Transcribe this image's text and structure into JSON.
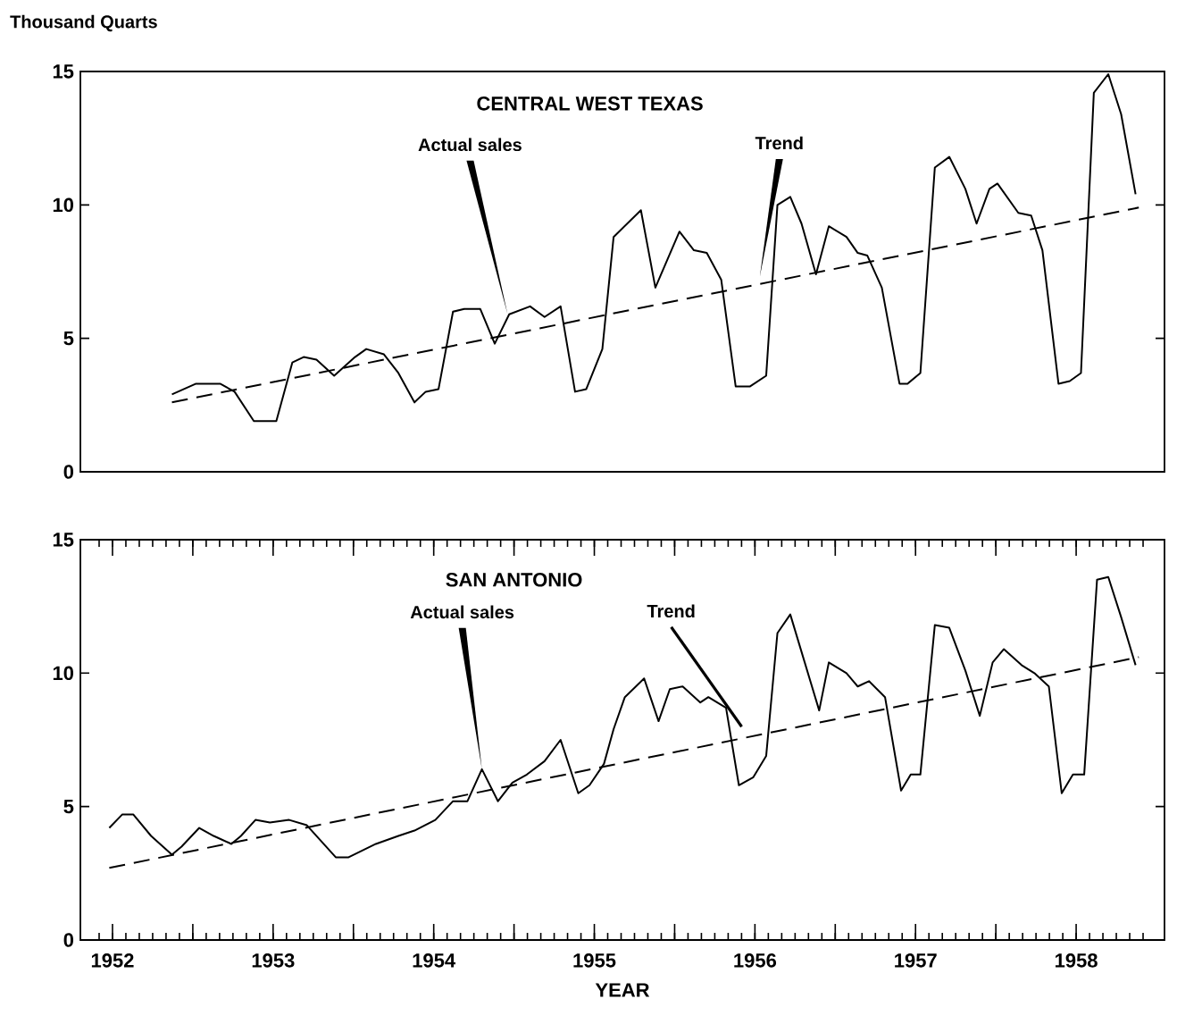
{
  "chart_data": [
    {
      "type": "line",
      "title": "CENTRAL WEST TEXAS",
      "ylabel": "Thousand Quarts",
      "xlim": [
        1952.3,
        1959.05
      ],
      "ylim": [
        0,
        15
      ],
      "yticks": [
        0,
        5,
        10,
        15
      ],
      "tick_labels": "y",
      "line_style": "solid",
      "series": [
        {
          "color": "#000000",
          "x": [
            1952.87,
            1953.02,
            1953.17,
            1953.26,
            1953.38,
            1953.52,
            1953.62,
            1953.69,
            1953.77,
            1953.88,
            1954.01,
            1954.08,
            1954.19,
            1954.28,
            1954.38,
            1954.45,
            1954.53,
            1954.62,
            1954.69,
            1954.79,
            1954.88,
            1954.97,
            1955.1,
            1955.19,
            1955.29,
            1955.38,
            1955.45,
            1955.55,
            1955.62,
            1955.79,
            1955.88,
            1956.03,
            1956.12,
            1956.2,
            1956.29,
            1956.38,
            1956.47,
            1956.57,
            1956.64,
            1956.72,
            1956.79,
            1956.88,
            1956.96,
            1957.07,
            1957.14,
            1957.2,
            1957.29,
            1957.4,
            1957.45,
            1957.53,
            1957.62,
            1957.71,
            1957.81,
            1957.88,
            1957.96,
            1958.01,
            1958.14,
            1958.22,
            1958.29,
            1958.39,
            1958.46,
            1958.53,
            1958.61,
            1958.7,
            1958.78,
            1958.87
          ],
          "values": [
            2.9,
            3.3,
            3.3,
            3.0,
            1.9,
            1.9,
            4.1,
            4.3,
            4.2,
            3.6,
            4.3,
            4.6,
            4.4,
            3.7,
            2.6,
            3.0,
            3.1,
            6.0,
            6.1,
            6.1,
            4.8,
            5.9,
            6.2,
            5.8,
            6.2,
            3.0,
            3.1,
            4.6,
            8.8,
            9.8,
            6.9,
            9.0,
            8.3,
            8.2,
            7.2,
            3.2,
            3.2,
            3.6,
            10.0,
            10.3,
            9.3,
            7.4,
            9.2,
            8.8,
            8.2,
            8.1,
            6.9,
            3.3,
            3.3,
            3.7,
            11.4,
            11.8,
            10.6,
            9.3,
            10.6,
            10.8,
            9.7,
            9.6,
            8.3,
            3.3,
            3.4,
            3.7,
            14.2,
            14.9,
            13.4,
            10.4
          ]
        },
        {
          "type": "line",
          "line_style": "dashed",
          "color": "#000000",
          "x": [
            1952.87,
            1958.89
          ],
          "values": [
            2.6,
            9.9
          ]
        }
      ],
      "annotations": [
        {
          "text": "Actual sales",
          "x": 1954.96,
          "y": 5.9
        },
        {
          "text": "Trend",
          "x": 1956.53,
          "y": 7.3
        }
      ]
    },
    {
      "type": "line",
      "title": "SAN ANTONIO",
      "xlabel": "YEAR",
      "xlim": [
        1952.3,
        1959.05
      ],
      "ylim": [
        0,
        15
      ],
      "yticks": [
        0,
        5,
        10,
        15
      ],
      "line_style": "solid",
      "xticks": [
        {
          "value": 1952.5,
          "label": "1952"
        },
        {
          "value": 1953,
          "label": null
        },
        {
          "value": 1953.5,
          "label": "1953"
        },
        {
          "value": 1954,
          "label": null
        },
        {
          "value": 1954.5,
          "label": "1954"
        },
        {
          "value": 1955,
          "label": null
        },
        {
          "value": 1955.5,
          "label": "1955"
        },
        {
          "value": 1956,
          "label": null
        },
        {
          "value": 1956.5,
          "label": "1956"
        },
        {
          "value": 1957,
          "label": null
        },
        {
          "value": 1957.5,
          "label": "1957"
        },
        {
          "value": 1958,
          "label": null
        },
        {
          "value": 1958.5,
          "label": "1958"
        }
      ],
      "series": [
        {
          "color": "#000000",
          "x": [
            1952.48,
            1952.56,
            1952.63,
            1952.74,
            1952.87,
            1952.93,
            1953.04,
            1953.13,
            1953.24,
            1953.3,
            1953.39,
            1953.48,
            1953.6,
            1953.71,
            1953.8,
            1953.89,
            1953.97,
            1954.14,
            1954.28,
            1954.38,
            1954.51,
            1954.62,
            1954.71,
            1954.8,
            1954.9,
            1954.99,
            1955.08,
            1955.19,
            1955.29,
            1955.4,
            1955.47,
            1955.56,
            1955.62,
            1955.69,
            1955.81,
            1955.9,
            1955.97,
            1956.05,
            1956.16,
            1956.21,
            1956.32,
            1956.4,
            1956.49,
            1956.57,
            1956.64,
            1956.72,
            1956.81,
            1956.9,
            1956.96,
            1957.07,
            1957.14,
            1957.21,
            1957.31,
            1957.41,
            1957.47,
            1957.53,
            1957.62,
            1957.71,
            1957.81,
            1957.9,
            1957.98,
            1958.05,
            1958.16,
            1958.24,
            1958.33,
            1958.41,
            1958.48,
            1958.55,
            1958.63,
            1958.7,
            1958.78,
            1958.87
          ],
          "values": [
            4.2,
            4.7,
            4.7,
            3.9,
            3.2,
            3.5,
            4.2,
            3.9,
            3.6,
            3.9,
            4.5,
            4.4,
            4.5,
            4.3,
            3.7,
            3.1,
            3.1,
            3.6,
            3.9,
            4.1,
            4.5,
            5.2,
            5.2,
            6.4,
            5.2,
            5.9,
            6.2,
            6.7,
            7.5,
            5.5,
            5.8,
            6.6,
            7.9,
            9.1,
            9.8,
            8.2,
            9.4,
            9.5,
            8.9,
            9.1,
            8.7,
            5.8,
            6.1,
            6.9,
            11.5,
            12.2,
            10.4,
            8.6,
            10.4,
            10.0,
            9.5,
            9.7,
            9.1,
            5.6,
            6.2,
            6.2,
            11.8,
            11.7,
            10.1,
            8.4,
            10.4,
            10.9,
            10.3,
            10.0,
            9.5,
            5.5,
            6.2,
            6.2,
            13.5,
            13.6,
            12.1,
            10.3
          ]
        },
        {
          "type": "line",
          "line_style": "dashed",
          "color": "#000000",
          "x": [
            1952.48,
            1958.89
          ],
          "values": [
            2.7,
            10.6
          ]
        }
      ],
      "annotations": [
        {
          "text": "Actual sales",
          "x": 1954.8,
          "y": 6.4
        },
        "Trend"
      ]
    }
  ]
}
